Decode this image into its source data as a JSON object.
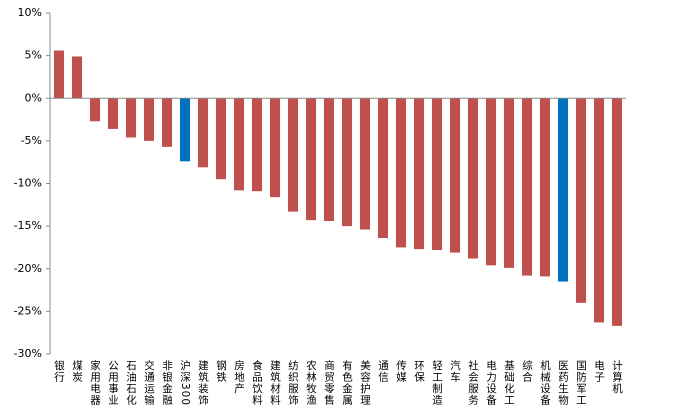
{
  "chart_data": {
    "type": "bar",
    "categories": [
      "银行",
      "煤炭",
      "家用电器",
      "公用事业",
      "石油石化",
      "交通运输",
      "非银金融",
      "沪深300",
      "建筑装饰",
      "钢铁",
      "房地产",
      "食品饮料",
      "建筑材料",
      "纺织服饰",
      "农林牧渔",
      "商贸零售",
      "有色金属",
      "美容护理",
      "通信",
      "传媒",
      "环保",
      "轻工制造",
      "汽车",
      "社会服务",
      "电力设备",
      "基础化工",
      "综合",
      "机械设备",
      "医药生物",
      "国防军工",
      "电子",
      "计算机"
    ],
    "values": [
      5.6,
      4.9,
      -2.7,
      -3.6,
      -4.6,
      -5.0,
      -5.7,
      -7.4,
      -8.1,
      -9.5,
      -10.8,
      -10.9,
      -11.6,
      -13.3,
      -14.3,
      -14.4,
      -15.0,
      -15.4,
      -16.4,
      -17.5,
      -17.7,
      -17.8,
      -18.1,
      -18.8,
      -19.6,
      -19.9,
      -20.8,
      -20.9,
      -21.5,
      -24.0,
      -26.3,
      -26.7
    ],
    "colors": [
      "#c0504d",
      "#c0504d",
      "#c0504d",
      "#c0504d",
      "#c0504d",
      "#c0504d",
      "#c0504d",
      "#0070c0",
      "#c0504d",
      "#c0504d",
      "#c0504d",
      "#c0504d",
      "#c0504d",
      "#c0504d",
      "#c0504d",
      "#c0504d",
      "#c0504d",
      "#c0504d",
      "#c0504d",
      "#c0504d",
      "#c0504d",
      "#c0504d",
      "#c0504d",
      "#c0504d",
      "#c0504d",
      "#c0504d",
      "#c0504d",
      "#c0504d",
      "#0070c0",
      "#c0504d",
      "#c0504d",
      "#c0504d"
    ],
    "ylim": [
      -30,
      10
    ],
    "yticks": [
      {
        "value": -30,
        "label": "-30%"
      },
      {
        "value": -25,
        "label": "-25%"
      },
      {
        "value": -20,
        "label": "-20%"
      },
      {
        "value": -15,
        "label": "-15%"
      },
      {
        "value": -10,
        "label": "-10%"
      },
      {
        "value": -5,
        "label": "-5%"
      },
      {
        "value": 0,
        "label": "0%"
      },
      {
        "value": 5,
        "label": "5%"
      },
      {
        "value": 10,
        "label": "10%"
      }
    ],
    "grid": false
  }
}
